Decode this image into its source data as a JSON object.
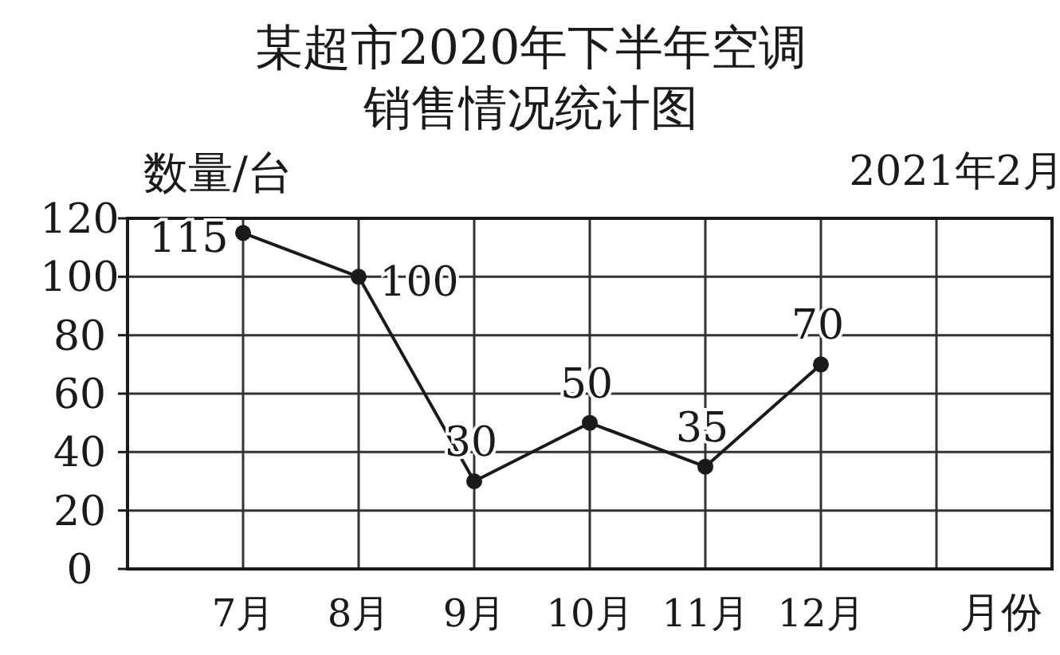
{
  "chart_data": {
    "type": "line",
    "title": "某超市2020年下半年空调",
    "subtitle": "销售情况统计图",
    "ylabel": "数量/台",
    "xlabel": "月份",
    "annotations": [
      "2021年2月"
    ],
    "categories": [
      "7月",
      "8月",
      "9月",
      "10月",
      "11月",
      "12月"
    ],
    "series": [
      {
        "color": "#1a1a1a",
        "values": [
          115,
          100,
          30,
          50,
          35,
          70
        ]
      }
    ],
    "ylim": [
      0,
      120
    ],
    "yticks": [
      0,
      20,
      40,
      60,
      80,
      100,
      120
    ],
    "grid": true,
    "marker": "circle",
    "line_style": "solid",
    "data_labels": true
  }
}
